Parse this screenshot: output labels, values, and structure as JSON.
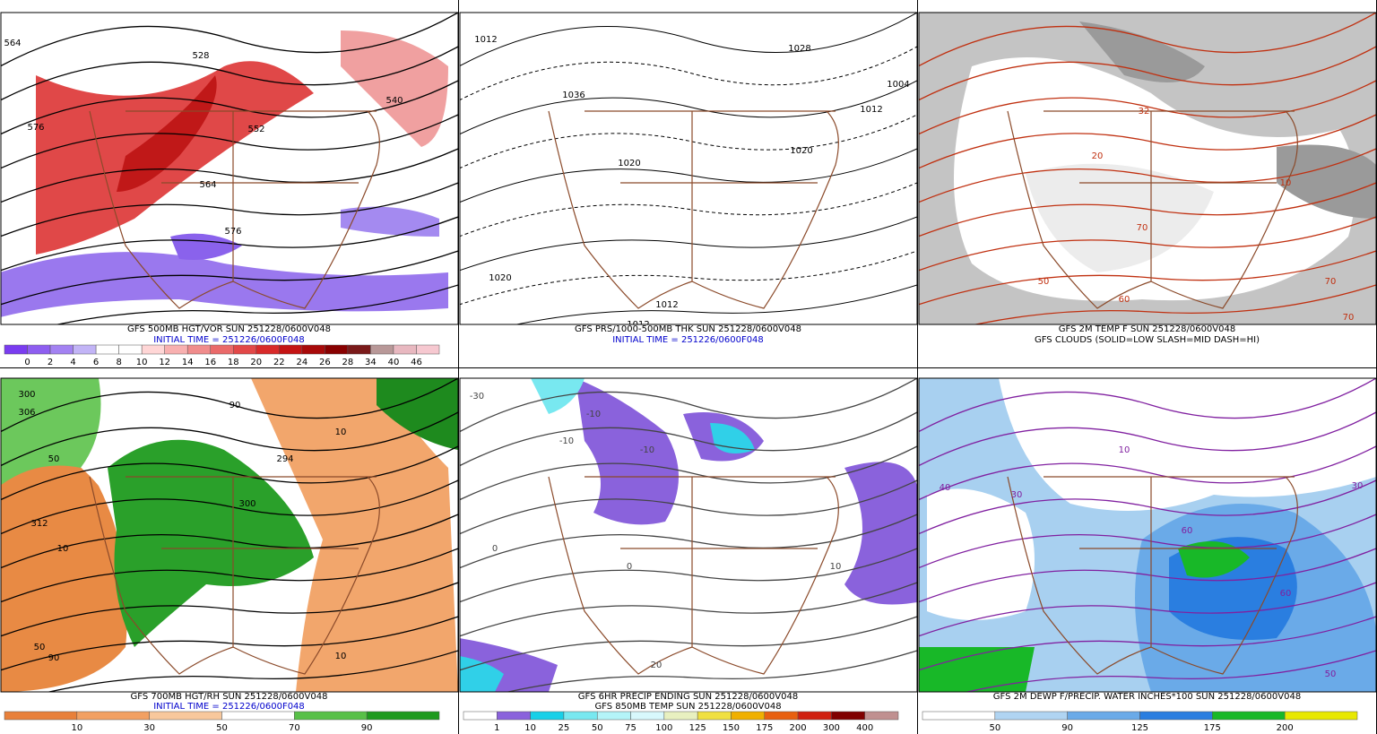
{
  "panels": [
    {
      "captions": [
        {
          "text": "GFS 500MB HGT/VOR SUN 251228/0600V048",
          "color": "#000000"
        },
        {
          "text": "INITIAL TIME = 251226/0600F048",
          "color": "#0000cc"
        }
      ],
      "map_labels": [
        "564",
        "528",
        "576",
        "552",
        "540",
        "564",
        "576"
      ],
      "colorbar": {
        "labels": [
          "0",
          "2",
          "4",
          "6",
          "8",
          "10",
          "12",
          "14",
          "16",
          "18",
          "20",
          "22",
          "24",
          "26",
          "28",
          "34",
          "40",
          "46"
        ],
        "colors": [
          "#7a3cf0",
          "#8e5ef0",
          "#a382f2",
          "#c2b4f6",
          "#ffffff",
          "#ffffff",
          "#ffd6d6",
          "#f8b0b0",
          "#f08c8c",
          "#ea6a6a",
          "#e24848",
          "#d82a2a",
          "#c41414",
          "#a80a0a",
          "#880000",
          "#7a1a1a",
          "#b89898",
          "#e8b8c0",
          "#f6c8d0"
        ]
      }
    },
    {
      "captions": [
        {
          "text": "GFS PRS/1000-500MB THK SUN 251228/0600V048",
          "color": "#000000"
        },
        {
          "text": "INITIAL TIME = 251226/0600F048",
          "color": "#0000cc"
        }
      ],
      "map_labels": [
        "1012",
        "1020",
        "1036",
        "1028",
        "1004",
        "1012",
        "1020",
        "1020",
        "1012",
        "1012"
      ]
    },
    {
      "captions": [
        {
          "text": "GFS 2M TEMP F SUN 251228/0600V048",
          "color": "#000000"
        },
        {
          "text": "GFS CLOUDS (SOLID=LOW SLASH=MID DASH=HI)",
          "color": "#000000"
        }
      ],
      "map_labels": [
        "32",
        "20",
        "10",
        "70",
        "50",
        "60",
        "70",
        "70"
      ]
    },
    {
      "captions": [
        {
          "text": "GFS 700MB HGT/RH SUN 251228/0600V048",
          "color": "#000000"
        },
        {
          "text": "INITIAL TIME = 251226/0600F048",
          "color": "#0000cc"
        }
      ],
      "map_labels": [
        "300",
        "306",
        "50",
        "312",
        "10",
        "90",
        "294",
        "300",
        "10",
        "50",
        "10",
        "90"
      ],
      "colorbar": {
        "labels": [
          "10",
          "30",
          "50",
          "70",
          "90"
        ],
        "colors": [
          "#e8803a",
          "#f2a062",
          "#f8c89c",
          "#ffffff",
          "#58c048",
          "#1e9a1e"
        ]
      }
    },
    {
      "captions": [
        {
          "text": "GFS 6HR PRECIP ENDING SUN 251228/0600V048",
          "color": "#000000"
        },
        {
          "text": "GFS 850MB TEMP SUN 251228/0600V048",
          "color": "#000000"
        }
      ],
      "map_labels": [
        "-30",
        "-10",
        "-10",
        "-10",
        "0",
        "0",
        "20",
        "10"
      ],
      "colorbar": {
        "labels": [
          "1",
          "10",
          "25",
          "50",
          "75",
          "100",
          "125",
          "150",
          "175",
          "200",
          "300",
          "400"
        ],
        "colors": [
          "#ffffff",
          "#8a62dc",
          "#18d0e8",
          "#78e8f0",
          "#b4f4f8",
          "#d8f8fc",
          "#e8f0c0",
          "#f0e040",
          "#f0b000",
          "#e86010",
          "#d02010",
          "#800000",
          "#c09090"
        ]
      }
    },
    {
      "captions": [
        {
          "text": "GFS 2M DEWP F/PRECIP. WATER INCHES*100 SUN 251228/0600V048",
          "color": "#000000"
        }
      ],
      "map_labels": [
        "40",
        "30",
        "60",
        "60",
        "30",
        "10",
        "50"
      ],
      "colorbar": {
        "labels": [
          "50",
          "90",
          "125",
          "175",
          "200"
        ],
        "colors": [
          "#ffffff",
          "#b0d4f2",
          "#6aaae8",
          "#2a7ee0",
          "#18b828",
          "#e8e800"
        ]
      }
    }
  ]
}
